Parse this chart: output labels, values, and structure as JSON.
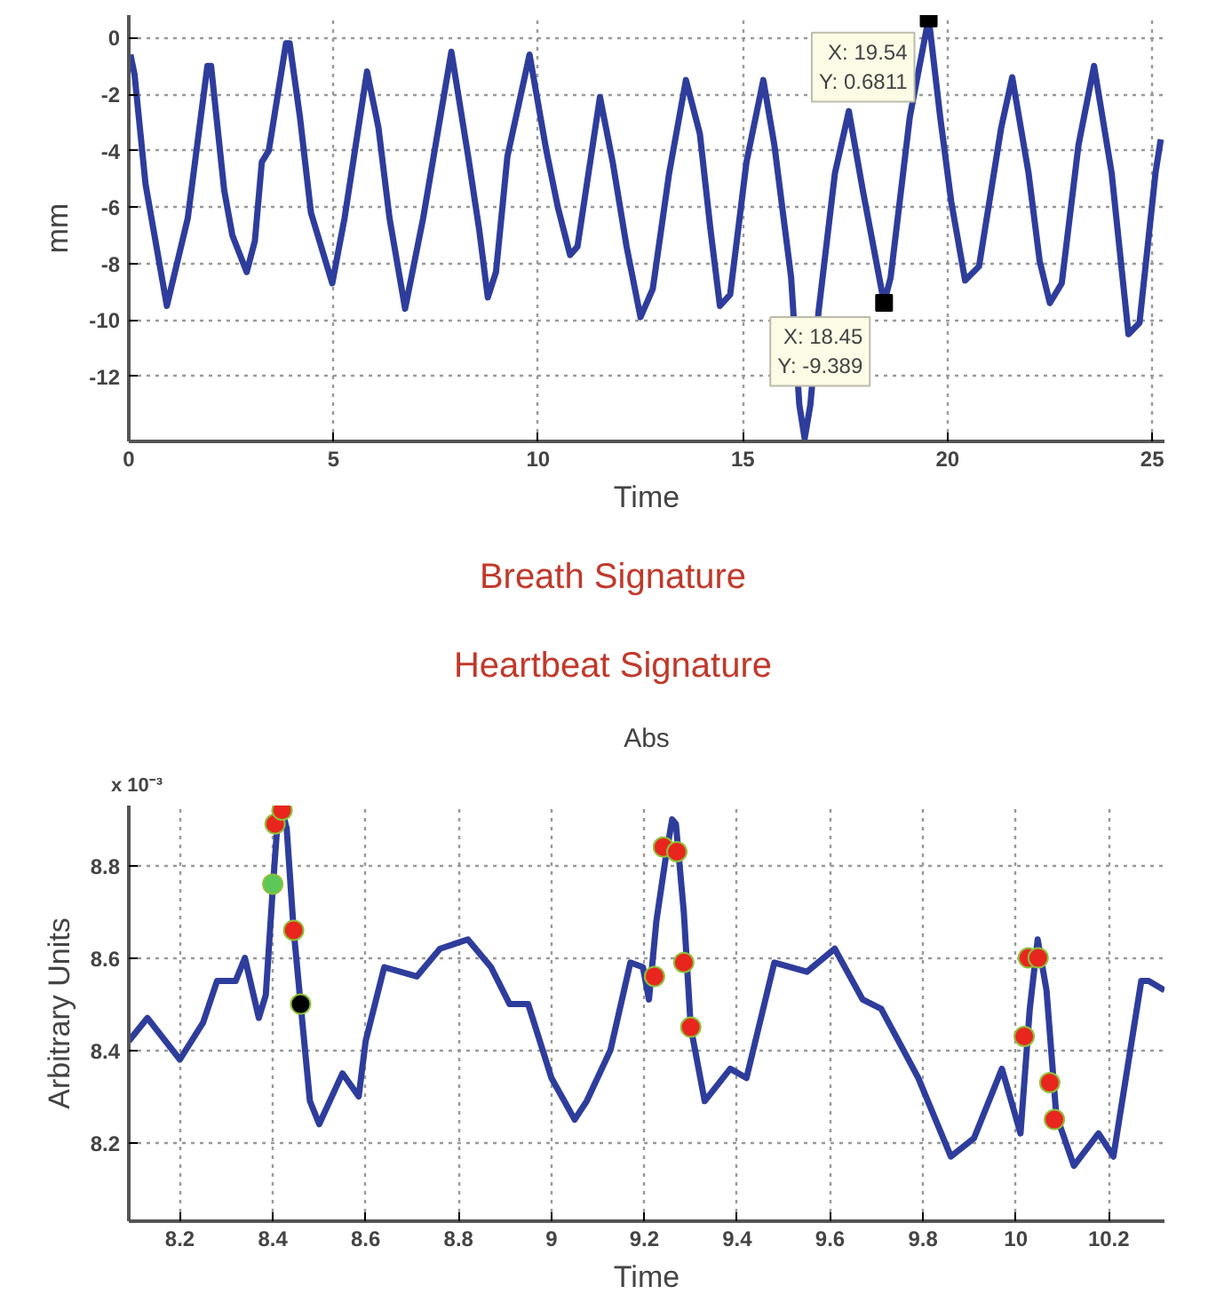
{
  "chart_data": [
    {
      "type": "line",
      "xlabel": "Time",
      "ylabel": "mm",
      "x": [
        0.04,
        0.14,
        0.41,
        0.93,
        1.44,
        1.92,
        2.01,
        2.33,
        2.53,
        2.88,
        3.08,
        3.25,
        3.42,
        3.84,
        3.93,
        4.18,
        4.45,
        4.97,
        5.27,
        5.82,
        6.1,
        6.37,
        6.75,
        7.19,
        7.88,
        8.29,
        8.56,
        8.77,
        8.97,
        9.25,
        9.79,
        10.2,
        10.48,
        10.78,
        10.96,
        11.23,
        11.51,
        11.82,
        12.16,
        12.5,
        12.8,
        13.2,
        13.61,
        13.95,
        14.21,
        14.44,
        14.69,
        15.09,
        15.5,
        15.77,
        16.18,
        16.38,
        16.51,
        16.65,
        16.85,
        17.25,
        17.59,
        17.93,
        18.45,
        18.61,
        19.08,
        19.54,
        19.82,
        20.09,
        20.43,
        20.77,
        21.31,
        21.58,
        21.98,
        22.25,
        22.5,
        22.79,
        23.2,
        23.58,
        24.01,
        24.42,
        24.69,
        25.08,
        25.21
      ],
      "series": [
        {
          "color": "#2e3d9c",
          "values": [
            -0.6,
            -1.3,
            -5.2,
            -9.5,
            -6.4,
            -1.0,
            -1.0,
            -5.4,
            -7.0,
            -8.3,
            -7.2,
            -4.4,
            -4.0,
            -0.2,
            -0.2,
            -2.8,
            -6.2,
            -8.7,
            -6.4,
            -1.2,
            -3.2,
            -6.4,
            -9.6,
            -6.4,
            -0.5,
            -4.2,
            -6.8,
            -9.2,
            -8.3,
            -4.2,
            -0.6,
            -4.0,
            -6.0,
            -7.7,
            -7.4,
            -4.8,
            -2.1,
            -4.4,
            -7.4,
            -9.9,
            -8.9,
            -4.8,
            -1.5,
            -3.4,
            -6.8,
            -9.5,
            -9.1,
            -4.4,
            -1.5,
            -3.8,
            -8.5,
            -13.0,
            -14.2,
            -13.0,
            -9.7,
            -4.8,
            -2.6,
            -5.4,
            -9.4,
            -8.5,
            -2.8,
            0.7,
            -2.8,
            -5.8,
            -8.6,
            -8.1,
            -3.2,
            -1.4,
            -4.8,
            -7.9,
            -9.4,
            -8.7,
            -3.8,
            -1.0,
            -4.8,
            -10.5,
            -10.1,
            -4.8,
            -3.6
          ]
        }
      ],
      "xlim": [
        0,
        25.3
      ],
      "ylim": [
        -14.3,
        0.8
      ],
      "xticks": [
        0,
        5,
        10,
        15,
        20,
        25
      ],
      "yticks": [
        0,
        -2,
        -4,
        -6,
        -8,
        -10,
        -12
      ],
      "grid": true,
      "marker": "none",
      "line_style": "solid",
      "annotations": [
        {
          "text": "X: 19.54\nY: 0.6811",
          "x": 19.54,
          "y": 0.6811
        },
        {
          "text": "X: 18.45\nY: -9.389",
          "x": 18.45,
          "y": -9.389
        },
        "Breath Signature"
      ]
    },
    {
      "type": "line",
      "title": "Abs",
      "xlabel": "Time",
      "ylabel": "Arbitrary Units",
      "series": [
        {
          "color": "#2e3d9c",
          "x": [
            8.09,
            8.13,
            8.2,
            8.25,
            8.28,
            8.32,
            8.34,
            8.37,
            8.385,
            8.4,
            8.41,
            8.42,
            8.43,
            8.445,
            8.46,
            8.48,
            8.5,
            8.55,
            8.585,
            8.6,
            8.64,
            8.71,
            8.76,
            8.82,
            8.87,
            8.91,
            8.95,
            9.0,
            9.05,
            9.076,
            9.127,
            9.17,
            9.197,
            9.21,
            9.226,
            9.248,
            9.26,
            9.268,
            9.285,
            9.3,
            9.33,
            9.385,
            9.42,
            9.48,
            9.55,
            9.61,
            9.67,
            9.71,
            9.79,
            9.86,
            9.91,
            9.97,
            10.01,
            10.03,
            10.047,
            10.066,
            10.087,
            10.125,
            10.178,
            10.21,
            10.27,
            10.286,
            10.32
          ],
          "values": [
            8.42,
            8.47,
            8.38,
            8.46,
            8.55,
            8.55,
            8.6,
            8.47,
            8.52,
            8.75,
            8.89,
            8.92,
            8.88,
            8.66,
            8.5,
            8.29,
            8.24,
            8.35,
            8.3,
            8.42,
            8.58,
            8.56,
            8.62,
            8.64,
            8.58,
            8.5,
            8.5,
            8.34,
            8.25,
            8.29,
            8.4,
            8.59,
            8.58,
            8.51,
            8.68,
            8.83,
            8.9,
            8.89,
            8.7,
            8.45,
            8.29,
            8.36,
            8.34,
            8.59,
            8.57,
            8.62,
            8.51,
            8.49,
            8.34,
            8.17,
            8.21,
            8.36,
            8.22,
            8.49,
            8.64,
            8.53,
            8.26,
            8.15,
            8.22,
            8.17,
            8.55,
            8.55,
            8.53
          ]
        },
        {
          "type": "scatter",
          "marker": "circle",
          "color": "#e8261e",
          "x": [
            8.405,
            8.42,
            8.445,
            9.222,
            9.241,
            9.27,
            9.285,
            9.3,
            10.018,
            10.027,
            10.048,
            10.073,
            10.083
          ],
          "values": [
            8.89,
            8.92,
            8.66,
            8.56,
            8.84,
            8.83,
            8.59,
            8.45,
            8.43,
            8.6,
            8.6,
            8.33,
            8.25
          ]
        },
        {
          "type": "scatter",
          "marker": "circle",
          "color": "#5cc85a",
          "x": [
            8.4
          ],
          "values": [
            8.76
          ]
        },
        {
          "type": "scatter",
          "marker": "circle",
          "color": "#000000",
          "x": [
            8.46
          ],
          "values": [
            8.5
          ]
        }
      ],
      "xlim": [
        8.09,
        10.32
      ],
      "ylim": [
        8.03,
        8.93
      ],
      "xticks": [
        8.2,
        8.4,
        8.6,
        8.8,
        9,
        9.2,
        9.4,
        9.6,
        9.8,
        10,
        10.2
      ],
      "yticks": [
        8.2,
        8.4,
        8.6,
        8.8
      ],
      "grid": true,
      "marker": "none",
      "line_style": "solid",
      "annotations": [
        "Heartbeat Signature",
        "x 10⁻³"
      ]
    }
  ]
}
